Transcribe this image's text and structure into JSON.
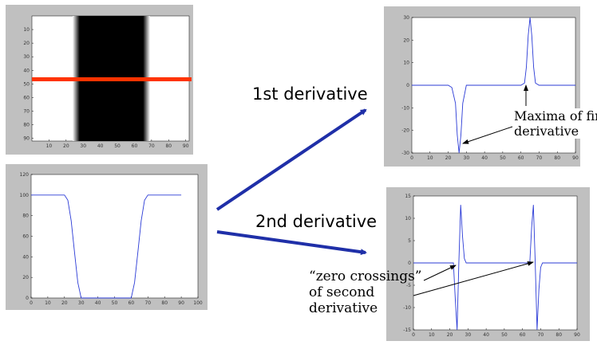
{
  "panels": {
    "image": {
      "x_ticks": [
        "10",
        "20",
        "30",
        "40",
        "50",
        "60",
        "70",
        "80",
        "90"
      ],
      "y_ticks": [
        "10",
        "20",
        "30",
        "40",
        "50",
        "60",
        "70",
        "80",
        "90"
      ],
      "colors": {
        "scanline": "#ff3300",
        "dark_band": "#000000",
        "background": "#ffffff"
      }
    },
    "profile": {
      "x_ticks": [
        "0",
        "10",
        "20",
        "30",
        "40",
        "50",
        "60",
        "70",
        "80",
        "90",
        "100"
      ],
      "y_ticks": [
        "120",
        "100",
        "80",
        "60",
        "40",
        "20",
        "0"
      ]
    },
    "first_derivative": {
      "x_ticks": [
        "0",
        "10",
        "20",
        "30",
        "40",
        "50",
        "60",
        "70",
        "80",
        "90"
      ],
      "y_ticks": [
        "30",
        "20",
        "10",
        "0",
        "-10",
        "-20",
        "-30"
      ]
    },
    "second_derivative": {
      "x_ticks": [
        "0",
        "10",
        "20",
        "30",
        "40",
        "50",
        "60",
        "70",
        "80",
        "90"
      ],
      "y_ticks": [
        "15",
        "10",
        "5",
        "0",
        "-5",
        "-10",
        "-15"
      ]
    }
  },
  "labels": {
    "first": "1st derivative",
    "second": "2nd derivative",
    "maxima_line1": "Maxima of firs",
    "maxima_line2": "derivative",
    "zero_line1": "“zero crossings”",
    "zero_line2": "of second",
    "zero_line3": "derivative"
  },
  "chart_data": [
    {
      "type": "line",
      "x": [
        0,
        20,
        22,
        24,
        26,
        28,
        30,
        60,
        62,
        64,
        66,
        68,
        70,
        90
      ],
      "series": [
        {
          "values": [
            100,
            100,
            95,
            75,
            45,
            15,
            0,
            0,
            15,
            45,
            75,
            95,
            100,
            100
          ]
        }
      ],
      "xlim": [
        0,
        100
      ],
      "ylim": [
        0,
        120
      ]
    },
    {
      "type": "line",
      "x": [
        0,
        20,
        22,
        24,
        25,
        26,
        27,
        28,
        30,
        60,
        62,
        63,
        64,
        65,
        66,
        67,
        68,
        70,
        90
      ],
      "series": [
        {
          "values": [
            0,
            0,
            -1,
            -8,
            -22,
            -30,
            -22,
            -8,
            0,
            0,
            1,
            8,
            22,
            30,
            22,
            8,
            1,
            0,
            0
          ]
        }
      ],
      "xlim": [
        0,
        90
      ],
      "ylim": [
        -30,
        30
      ]
    },
    {
      "type": "line",
      "x": [
        0,
        22,
        23,
        24,
        25,
        26,
        27,
        28,
        29,
        30,
        64,
        65,
        66,
        67,
        68,
        69,
        70,
        71,
        72,
        90
      ],
      "series": [
        {
          "values": [
            0,
            0,
            -8,
            -15,
            0,
            13,
            6,
            1,
            0,
            0,
            0,
            8,
            13,
            0,
            -15,
            -6,
            -1,
            0,
            0,
            0
          ]
        }
      ],
      "xlim": [
        0,
        90
      ],
      "ylim": [
        -15,
        15
      ]
    }
  ]
}
